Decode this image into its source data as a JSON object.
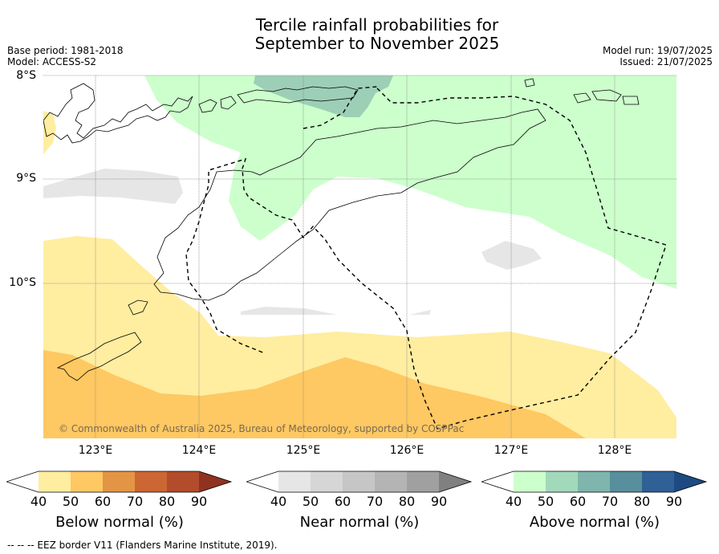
{
  "title_line1": "Tercile rainfall probabilities for",
  "title_line2": "September to November 2025",
  "meta_left": [
    "Base period: 1981-2018",
    "Model: ACCESS-S2"
  ],
  "meta_right": [
    "Model run: 19/07/2025",
    "Issued: 21/07/2025"
  ],
  "lat_labels": [
    "8°S",
    "9°S",
    "10°S"
  ],
  "lon_labels": [
    "123°E",
    "124°E",
    "125°E",
    "126°E",
    "127°E",
    "128°E"
  ],
  "copyright": "© Commonwealth of Australia 2025, Bureau of Meteorology, supported by COSPPac",
  "colorbars": [
    {
      "title": "Below normal (%)",
      "ticks": [
        "40",
        "50",
        "60",
        "70",
        "80",
        "90"
      ],
      "colors": [
        "#ffffff",
        "#ffeda0",
        "#fec862",
        "#e39545",
        "#cc6633",
        "#b24c2b",
        "#8f3320"
      ]
    },
    {
      "title": "Near normal (%)",
      "ticks": [
        "40",
        "50",
        "60",
        "70",
        "80",
        "90"
      ],
      "colors": [
        "#ffffff",
        "#e6e6e6",
        "#d6d6d6",
        "#c6c6c6",
        "#b4b4b4",
        "#a0a0a0",
        "#808080"
      ]
    },
    {
      "title": "Above normal (%)",
      "ticks": [
        "40",
        "50",
        "60",
        "70",
        "80",
        "90"
      ],
      "colors": [
        "#ffffff",
        "#ccffcc",
        "#a3d9bb",
        "#7fb5ac",
        "#578f9c",
        "#2f6096",
        "#1d4a82"
      ]
    }
  ],
  "footnote": "-- -- -- EEZ border V11 (Flanders Marine Institute, 2019).",
  "map_colors": {
    "below50": "#ffeda0",
    "below60": "#fec862",
    "near50": "#e6e6e6",
    "above50": "#ccffcc",
    "above60": "#9ccfb6",
    "coast": "#000000",
    "grid": "#888888"
  }
}
